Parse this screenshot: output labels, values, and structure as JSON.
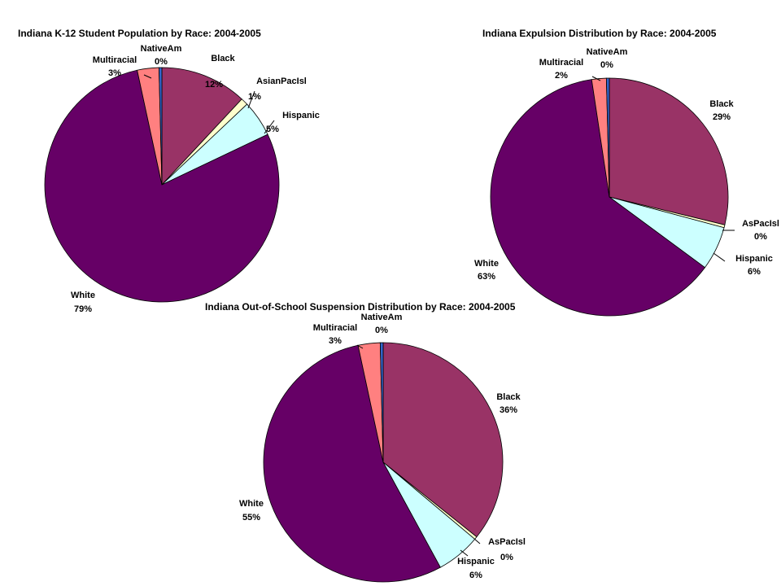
{
  "chart_data": [
    {
      "type": "pie",
      "title": "Indiana K-12 Student Population by Race: 2004-2005",
      "unit": "%",
      "colors": {
        "Black": "#993366",
        "AsianPacIsl": "#FFFFCC",
        "Hispanic": "#CCFFFF",
        "White": "#660066",
        "Multiracial": "#FF8080",
        "NativeAm": "#3366CC"
      },
      "slices": [
        {
          "label": "Black",
          "value": 12
        },
        {
          "label": "AsianPacIsl",
          "value": 1
        },
        {
          "label": "Hispanic",
          "value": 5
        },
        {
          "label": "White",
          "value": 79
        },
        {
          "label": "Multiracial",
          "value": 3
        },
        {
          "label": "NativeAm",
          "value": 0
        }
      ],
      "value_labels": [
        "12%",
        "1%",
        "5%",
        "79%",
        "3%",
        "0%"
      ],
      "legend": "none"
    },
    {
      "type": "pie",
      "title": "Indiana Expulsion Distribution by Race: 2004-2005",
      "unit": "%",
      "colors": {
        "Black": "#993366",
        "AsPacIsl": "#FFFFCC",
        "Hispanic": "#CCFFFF",
        "White": "#660066",
        "Multiracial": "#FF8080",
        "NativeAm": "#3366CC"
      },
      "slices": [
        {
          "label": "Black",
          "value": 29
        },
        {
          "label": "AsPacIsl",
          "value": 0
        },
        {
          "label": "Hispanic",
          "value": 6
        },
        {
          "label": "White",
          "value": 63
        },
        {
          "label": "Multiracial",
          "value": 2
        },
        {
          "label": "NativeAm",
          "value": 0
        }
      ],
      "value_labels": [
        "29%",
        "0%",
        "6%",
        "63%",
        "2%",
        "0%"
      ],
      "legend": "none"
    },
    {
      "type": "pie",
      "title": "Indiana Out-of-School Suspension Distribution by Race: 2004-2005",
      "unit": "%",
      "colors": {
        "Black": "#993366",
        "AsPacIsl": "#FFFFCC",
        "Hispanic": "#CCFFFF",
        "White": "#660066",
        "Multiracial": "#FF8080",
        "NativeAm": "#3366CC"
      },
      "slices": [
        {
          "label": "Black",
          "value": 36
        },
        {
          "label": "AsPacIsl",
          "value": 0
        },
        {
          "label": "Hispanic",
          "value": 6
        },
        {
          "label": "White",
          "value": 55
        },
        {
          "label": "Multiracial",
          "value": 3
        },
        {
          "label": "NativeAm",
          "value": 0
        }
      ],
      "value_labels": [
        "36%",
        "0%",
        "6%",
        "55%",
        "3%",
        "0%"
      ],
      "legend": "none"
    }
  ]
}
